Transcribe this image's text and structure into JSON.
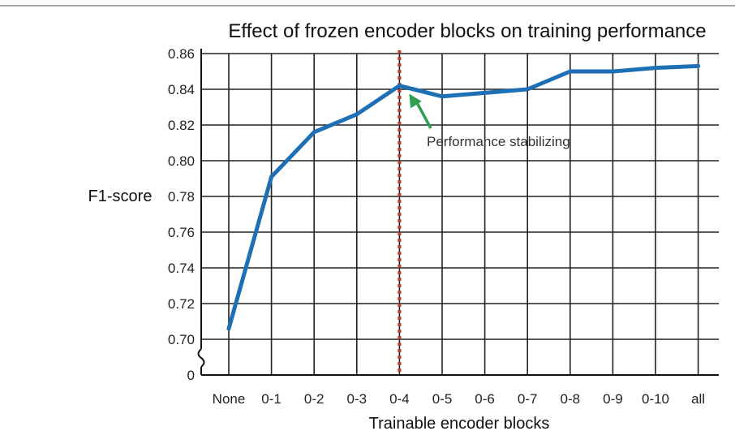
{
  "chart_data": {
    "type": "line",
    "title": "Effect of frozen encoder blocks on training performance",
    "xlabel": "Trainable encoder blocks",
    "ylabel": "F1-score",
    "categories": [
      "None",
      "0-1",
      "0-2",
      "0-3",
      "0-4",
      "0-5",
      "0-6",
      "0-7",
      "0-8",
      "0-9",
      "0-10",
      "all"
    ],
    "series": [
      {
        "values": [
          0.706,
          0.791,
          0.816,
          0.826,
          0.842,
          0.836,
          0.838,
          0.84,
          0.85,
          0.85,
          0.852,
          0.853
        ]
      }
    ],
    "y_ticks": [
      "0.86",
      "0.84",
      "0.82",
      "0.80",
      "0.78",
      "0.76",
      "0.74",
      "0.72",
      "0.70",
      "0"
    ],
    "ylim": [
      0.7,
      0.86
    ],
    "y_axis_break": true,
    "grid": true,
    "reference_line": {
      "category": "0-4",
      "style": "dotted",
      "color": "#c0392b"
    },
    "annotation": {
      "text": "Performance stabilizing",
      "points_to": "0-4",
      "arrow_color": "#2e9e4f"
    },
    "colors": {
      "line": "#1f6fb5",
      "grid": "#222222",
      "ref_line": "#c0392b",
      "arrow": "#2e9e4f"
    }
  }
}
